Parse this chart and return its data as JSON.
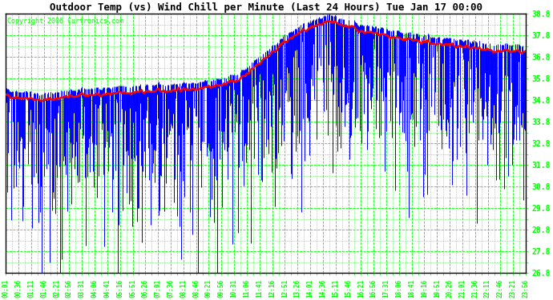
{
  "title": "Outdoor Temp (vs) Wind Chill per Minute (Last 24 Hours) Tue Jan 17 00:00",
  "copyright": "Copyright 2006 Curtronics.com",
  "ylim": [
    26.8,
    38.8
  ],
  "yticks": [
    26.8,
    27.8,
    28.8,
    29.8,
    30.8,
    31.8,
    32.8,
    33.8,
    34.8,
    35.8,
    36.8,
    37.8,
    38.8
  ],
  "bg_color": "#ffffff",
  "outer_bg": "#ffffff",
  "bar_color": "#0000ff",
  "line_color": "#ff0000",
  "grid_color": "#00ff00",
  "title_color": "#000000",
  "yticklabel_color": "#00cc00",
  "n_minutes": 1440,
  "outdoor_base_x": [
    0,
    100,
    200,
    300,
    400,
    500,
    550,
    600,
    650,
    700,
    750,
    800,
    850,
    900,
    950,
    1000,
    1050,
    1100,
    1200,
    1300,
    1350,
    1440
  ],
  "outdoor_base_y": [
    35.0,
    34.8,
    35.0,
    35.1,
    35.2,
    35.3,
    35.4,
    35.5,
    35.8,
    36.5,
    37.2,
    37.8,
    38.2,
    38.4,
    38.2,
    37.9,
    37.8,
    37.6,
    37.4,
    37.2,
    37.1,
    37.0
  ],
  "windchill_base_x": [
    0,
    200,
    400,
    600,
    700,
    800,
    900,
    1000,
    1100,
    1200,
    1300,
    1440
  ],
  "windchill_base_y": [
    34.2,
    34.0,
    34.3,
    34.8,
    35.5,
    36.8,
    37.5,
    37.0,
    36.8,
    36.5,
    36.2,
    36.0
  ],
  "windchill_std": 2.8,
  "windchill_clip_low": 26.8,
  "windchill_clip_high": 38.8,
  "xtick_labels": [
    "00:01",
    "00:36",
    "01:11",
    "01:46",
    "02:21",
    "02:56",
    "03:31",
    "04:06",
    "04:41",
    "05:16",
    "05:51",
    "06:26",
    "07:01",
    "07:36",
    "08:11",
    "08:46",
    "09:21",
    "09:56",
    "10:31",
    "11:06",
    "11:41",
    "12:16",
    "12:51",
    "13:26",
    "14:01",
    "14:36",
    "15:11",
    "15:46",
    "16:21",
    "16:56",
    "17:31",
    "18:06",
    "18:41",
    "19:16",
    "19:51",
    "20:26",
    "21:01",
    "21:36",
    "22:11",
    "22:46",
    "23:21",
    "23:56"
  ]
}
